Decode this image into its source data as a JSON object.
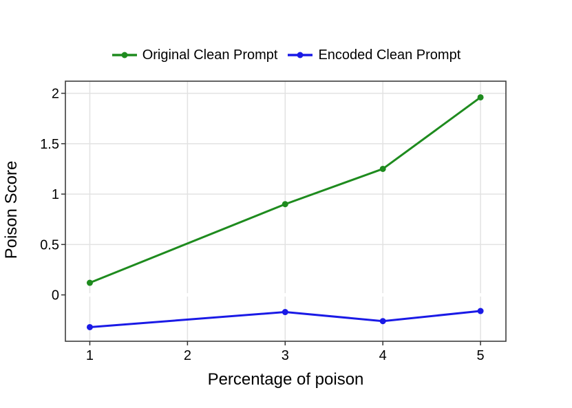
{
  "figure": {
    "background": "#ffffff",
    "text_color": "#000000",
    "grid_color": "#e2e2e2",
    "border_color": "#3d3d3d"
  },
  "chart_data": {
    "type": "line",
    "title": "",
    "xlabel": "Percentage of poison",
    "ylabel": "Poison Score",
    "x": [
      1,
      3,
      4,
      5
    ],
    "series": [
      {
        "name": "Original Clean Prompt",
        "color": "#1e8b1e",
        "values": [
          0.12,
          0.9,
          1.25,
          1.96
        ]
      },
      {
        "name": "Encoded Clean Prompt",
        "color": "#1a1ae6",
        "values": [
          -0.32,
          -0.17,
          -0.26,
          -0.16
        ]
      }
    ],
    "x_ticks": [
      {
        "value": 1,
        "label": "1"
      },
      {
        "value": 2,
        "label": "2"
      },
      {
        "value": 3,
        "label": "3"
      },
      {
        "value": 4,
        "label": "4"
      },
      {
        "value": 5,
        "label": "5"
      }
    ],
    "y_ticks": [
      {
        "value": 0,
        "label": "0"
      },
      {
        "value": 0.5,
        "label": "0.5"
      },
      {
        "value": 1,
        "label": "1"
      },
      {
        "value": 1.5,
        "label": "1.5"
      },
      {
        "value": 2,
        "label": "2"
      }
    ],
    "xlim": [
      0.75,
      5.26
    ],
    "ylim": [
      -0.46,
      2.12
    ],
    "grid": "on",
    "legend_position": "top",
    "marker": "circle"
  }
}
